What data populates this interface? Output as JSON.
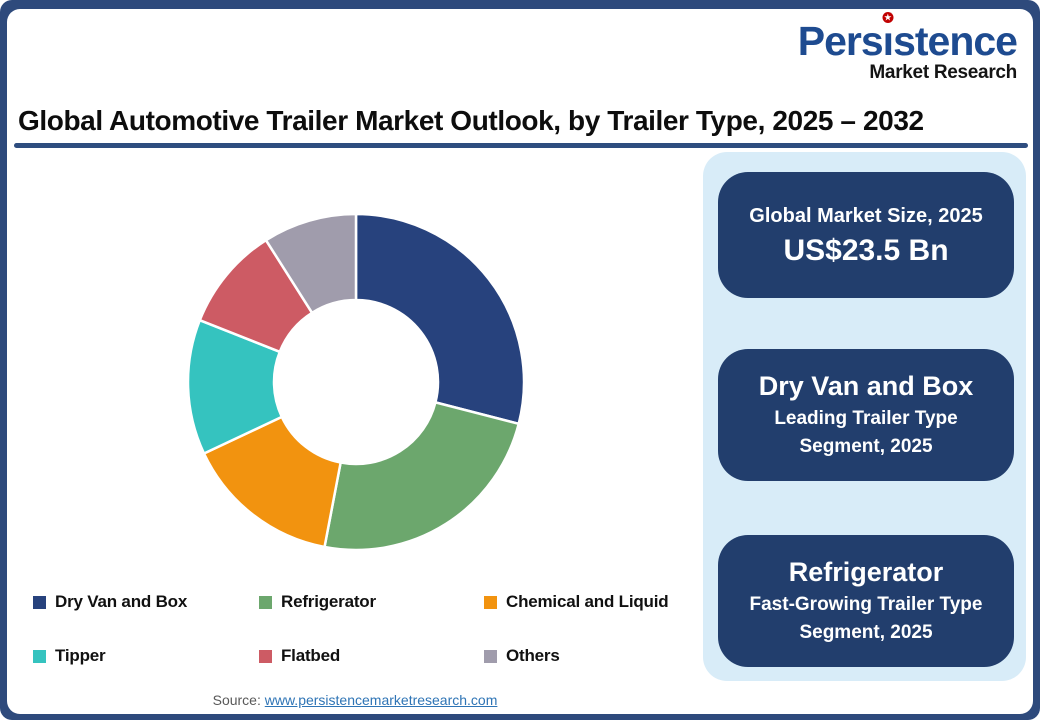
{
  "page": {
    "title": "Global Automotive Trailer Market Outlook, by Trailer Type, 2025 – 2032",
    "source_label": "Source:",
    "source_link": "www.persistencemarketresearch.com"
  },
  "logo": {
    "name": "Persistence",
    "name_parts": {
      "prefix": "Pers",
      "dotless_i": "ı",
      "suffix": "stence"
    },
    "star_icon_char": "★",
    "tagline": "Market Research",
    "brand_color": "#1E4B90",
    "star_color": "#C00000"
  },
  "chart_data": {
    "type": "pie",
    "donut": true,
    "title": "Global Automotive Trailer Market Outlook, by Trailer Type, 2025 – 2032",
    "categories": [
      "Dry Van and Box",
      "Refrigerator",
      "Chemical and Liquid",
      "Tipper",
      "Flatbed",
      "Others"
    ],
    "values": [
      29,
      24,
      15,
      13,
      10,
      9
    ],
    "values_note": "percent share estimated from arc angles; no numeric labels shown in image",
    "colors": [
      "#27427D",
      "#6CA76D",
      "#F2930F",
      "#35C3BF",
      "#CD5B64",
      "#A09CAC"
    ],
    "start_angle_deg": 0,
    "direction": "clockwise",
    "inner_radius_ratio": 0.49,
    "legend_position": "bottom",
    "segment_gap_color": "#ffffff"
  },
  "cards": [
    {
      "line1": "Global Market Size, 2025",
      "line2": "US$23.5 Bn"
    },
    {
      "line1": "Dry Van and Box",
      "line2": "Leading Trailer Type Segment, 2025"
    },
    {
      "line1": "Refrigerator",
      "line2": "Fast-Growing Trailer Type Segment, 2025"
    }
  ],
  "colors": {
    "frame_navy": "#2E4A7C",
    "underline_navy": "#2E4D7F",
    "panel_light_blue": "#D8ECF8",
    "card_navy": "#223E6D",
    "link_blue": "#2E74B5",
    "source_gray": "#595959"
  }
}
